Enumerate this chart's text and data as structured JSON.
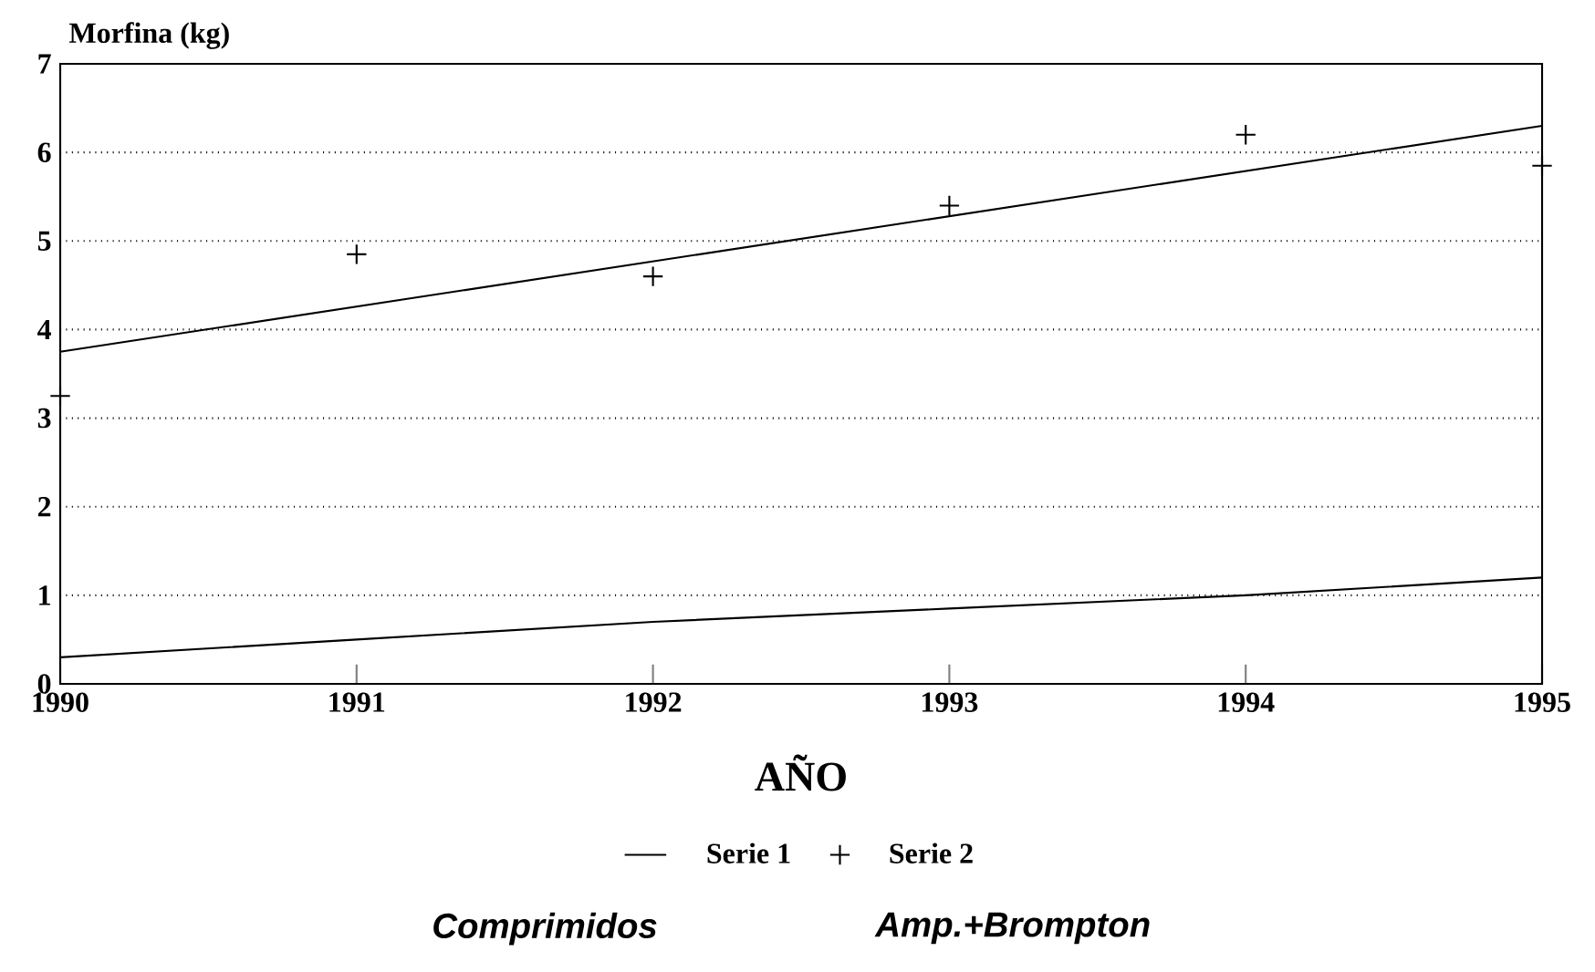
{
  "chart_data": {
    "type": "line",
    "ylabel": "Morfina (kg)",
    "xlabel": "AÑO",
    "xlim": [
      1990,
      1995
    ],
    "ylim": [
      0,
      7
    ],
    "xticks": [
      1990,
      1991,
      1992,
      1993,
      1994,
      1995
    ],
    "yticks": [
      0,
      1,
      2,
      3,
      4,
      5,
      6,
      7
    ],
    "grid": "y",
    "legend": "bottom",
    "annotations": [
      "Comprimidos",
      "Amp.+Brompton"
    ],
    "series": [
      {
        "name": "Serie 1",
        "color": "#000000",
        "marker": "none",
        "x": [
          1990,
          1991,
          1992,
          1993,
          1994,
          1995
        ],
        "values": [
          0.3,
          0.5,
          0.7,
          0.85,
          1.0,
          1.2
        ]
      },
      {
        "name": "Serie 2",
        "type": "scatter",
        "color": "#000000",
        "marker": "cross",
        "x": [
          1990,
          1991,
          1992,
          1993,
          1994,
          1995
        ],
        "values": [
          3.25,
          4.85,
          4.6,
          5.4,
          6.2,
          5.85
        ]
      },
      {
        "type": "line",
        "color": "#000000",
        "marker": "none",
        "x": [
          1990,
          1995
        ],
        "values": [
          3.75,
          6.3
        ]
      }
    ]
  }
}
